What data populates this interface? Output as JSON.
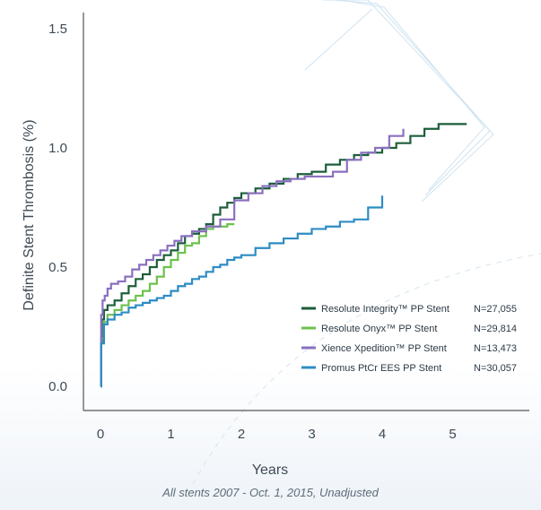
{
  "caption": "All stents 2007 - Oct. 1, 2015, Unadjusted",
  "chart_data": {
    "type": "line",
    "step": true,
    "xlabel": "Years",
    "ylabel": "Definite Stent Thrombosis (%)",
    "xlim": [
      -0.15,
      6.1
    ],
    "ylim": [
      -0.1,
      1.6
    ],
    "xticks": [
      0,
      1,
      2,
      3,
      4,
      5
    ],
    "yticks": [
      0.0,
      0.5,
      1.0,
      1.5
    ],
    "ytick_labels": [
      "0.0",
      "0.5",
      "1.0",
      "1.5"
    ],
    "legend_position": "bottom-right",
    "series": [
      {
        "name": "Resolute Integrity™ PP Stent",
        "n": "N=27,055",
        "color": "#1c5e3b",
        "x": [
          0,
          0.01,
          0.02,
          0.05,
          0.1,
          0.2,
          0.3,
          0.4,
          0.5,
          0.6,
          0.7,
          0.8,
          0.9,
          1.0,
          1.1,
          1.2,
          1.3,
          1.4,
          1.5,
          1.6,
          1.7,
          1.8,
          1.9,
          2.0,
          2.2,
          2.4,
          2.6,
          2.8,
          3.0,
          3.2,
          3.4,
          3.6,
          3.8,
          4.0,
          4.2,
          4.4,
          4.6,
          4.8,
          5.0,
          5.2
        ],
        "y": [
          0.0,
          0.18,
          0.28,
          0.32,
          0.34,
          0.36,
          0.39,
          0.42,
          0.45,
          0.47,
          0.5,
          0.53,
          0.55,
          0.57,
          0.6,
          0.63,
          0.64,
          0.66,
          0.68,
          0.72,
          0.75,
          0.77,
          0.79,
          0.81,
          0.83,
          0.85,
          0.87,
          0.89,
          0.9,
          0.93,
          0.95,
          0.97,
          0.98,
          1.0,
          1.02,
          1.05,
          1.08,
          1.1,
          1.1,
          1.1
        ]
      },
      {
        "name": "Resolute Onyx™ PP Stent",
        "n": "N=29,814",
        "color": "#6cc14c",
        "x": [
          0,
          0.01,
          0.05,
          0.1,
          0.2,
          0.3,
          0.4,
          0.5,
          0.6,
          0.7,
          0.8,
          0.9,
          1.0,
          1.1,
          1.2,
          1.3,
          1.4,
          1.5,
          1.6,
          1.7,
          1.8,
          1.9
        ],
        "y": [
          0.0,
          0.2,
          0.27,
          0.3,
          0.32,
          0.34,
          0.36,
          0.38,
          0.4,
          0.43,
          0.46,
          0.5,
          0.53,
          0.56,
          0.59,
          0.6,
          0.63,
          0.66,
          0.67,
          0.67,
          0.68,
          0.68
        ]
      },
      {
        "name": "Xience Xpedition™ PP Stent",
        "n": "N=13,473",
        "color": "#8a6fbf",
        "x": [
          0,
          0.01,
          0.03,
          0.06,
          0.1,
          0.15,
          0.25,
          0.35,
          0.45,
          0.55,
          0.65,
          0.75,
          0.85,
          0.95,
          1.05,
          1.15,
          1.3,
          1.5,
          1.7,
          1.9,
          2.1,
          2.3,
          2.5,
          2.7,
          2.9,
          3.1,
          3.3,
          3.5,
          3.7,
          3.9,
          4.1,
          4.3
        ],
        "y": [
          0.0,
          0.3,
          0.36,
          0.38,
          0.41,
          0.43,
          0.44,
          0.46,
          0.49,
          0.51,
          0.53,
          0.55,
          0.57,
          0.59,
          0.61,
          0.63,
          0.65,
          0.67,
          0.7,
          0.78,
          0.81,
          0.84,
          0.86,
          0.87,
          0.88,
          0.88,
          0.9,
          0.95,
          0.98,
          1.0,
          1.05,
          1.08
        ]
      },
      {
        "name": "Promus PtCr EES PP Stent",
        "n": "N=30,057",
        "color": "#2d8cc4",
        "x": [
          0,
          0.01,
          0.05,
          0.1,
          0.2,
          0.3,
          0.4,
          0.5,
          0.6,
          0.7,
          0.8,
          0.9,
          1.0,
          1.1,
          1.2,
          1.3,
          1.4,
          1.5,
          1.6,
          1.7,
          1.8,
          1.9,
          2.0,
          2.2,
          2.4,
          2.6,
          2.8,
          3.0,
          3.2,
          3.4,
          3.6,
          3.8,
          4.0
        ],
        "y": [
          0.0,
          0.18,
          0.26,
          0.28,
          0.3,
          0.31,
          0.33,
          0.34,
          0.35,
          0.36,
          0.37,
          0.38,
          0.4,
          0.42,
          0.43,
          0.45,
          0.46,
          0.48,
          0.5,
          0.51,
          0.53,
          0.54,
          0.55,
          0.58,
          0.6,
          0.62,
          0.64,
          0.66,
          0.67,
          0.69,
          0.7,
          0.75,
          0.8
        ]
      }
    ]
  }
}
